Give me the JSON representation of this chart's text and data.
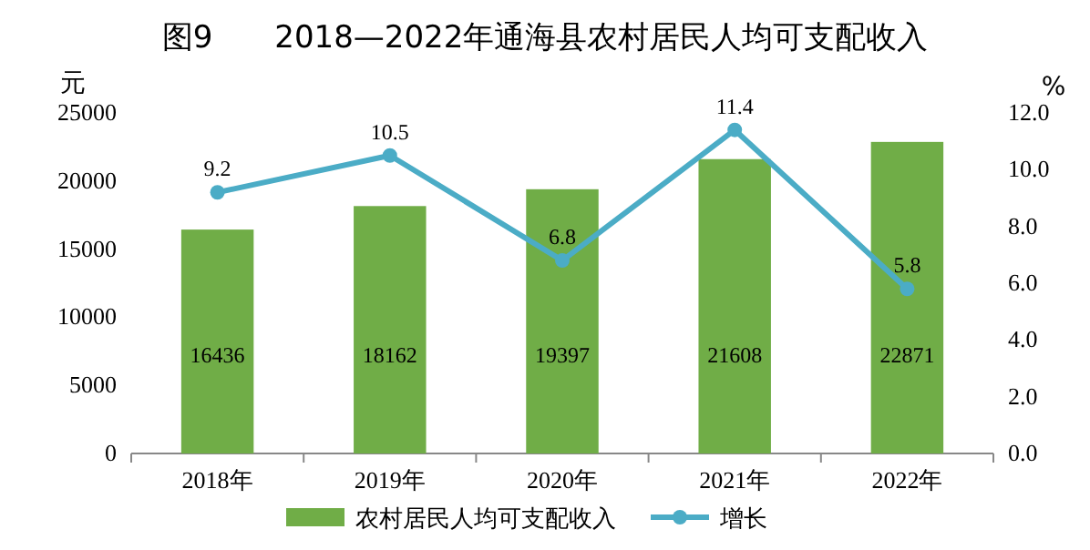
{
  "chart_data": {
    "type": "bar",
    "title": "图9　　2018—2022年通海县农村居民人均可支配收入",
    "ylabel": "元",
    "y2label": "%",
    "categories": [
      "2018年",
      "2019年",
      "2020年",
      "2021年",
      "2022年"
    ],
    "series": [
      {
        "name": "农村居民人均可支配收入",
        "type": "bar",
        "color": "#70ad47",
        "values": [
          16436,
          18162,
          19397,
          21608,
          22871
        ]
      },
      {
        "name": "增长",
        "type": "line",
        "axis": "y2",
        "color": "#4bacc6",
        "marker": "circle",
        "values": [
          9.2,
          10.5,
          6.8,
          11.4,
          5.8
        ]
      }
    ],
    "ylim": [
      0,
      25000
    ],
    "yticks": [
      0,
      5000,
      10000,
      15000,
      20000,
      25000
    ],
    "y2lim": [
      0,
      12
    ],
    "y2ticks": [
      {
        "value": 0,
        "label": "0.0"
      },
      {
        "value": 2,
        "label": "2.0"
      },
      {
        "value": 4,
        "label": "4.0"
      },
      {
        "value": 6,
        "label": "6.0"
      },
      {
        "value": 8,
        "label": "8.0"
      },
      {
        "value": 10,
        "label": "10.0"
      },
      {
        "value": 12,
        "label": "12.0"
      }
    ],
    "data_labels": true,
    "legend": "bottom"
  }
}
